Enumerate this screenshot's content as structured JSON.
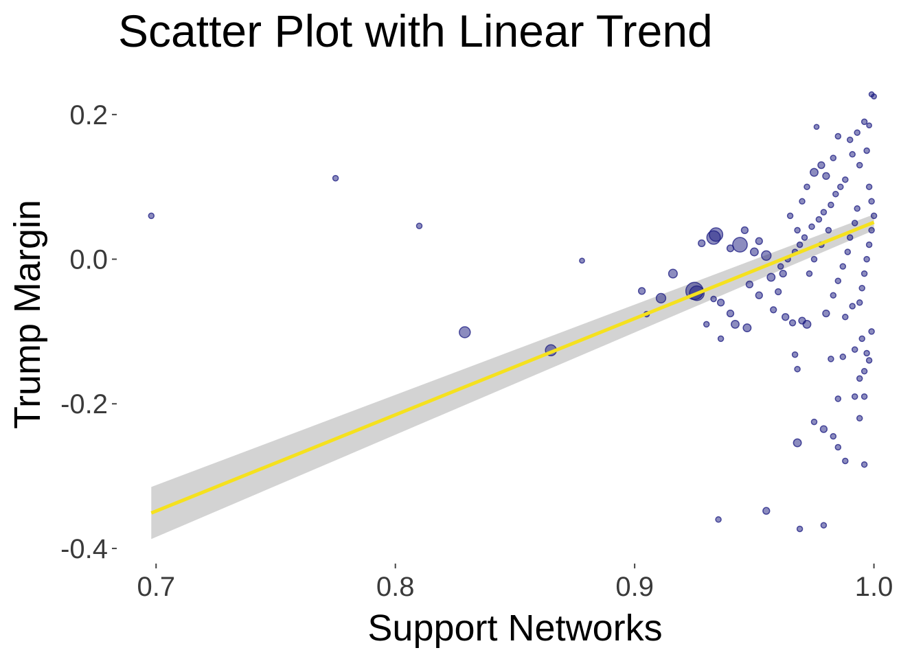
{
  "chart_data": {
    "type": "scatter",
    "title": "Scatter Plot with Linear Trend",
    "xlabel": "Support Networks",
    "ylabel": "Trump Margin",
    "xlim": [
      0.685,
      1.005
    ],
    "ylim": [
      -0.42,
      0.235
    ],
    "x_ticks": [
      {
        "value": 0.7,
        "label": "0.7"
      },
      {
        "value": 0.8,
        "label": "0.8"
      },
      {
        "value": 0.9,
        "label": "0.9"
      },
      {
        "value": 1.0,
        "label": "1.0"
      }
    ],
    "y_ticks": [
      {
        "value": 0.2,
        "label": "0.2"
      },
      {
        "value": 0.0,
        "label": "0.0"
      },
      {
        "value": -0.2,
        "label": "-0.2"
      },
      {
        "value": -0.4,
        "label": "-0.4"
      }
    ],
    "grid": false,
    "colors": {
      "points": "#1a1a80",
      "point_fill_opacity": 0.5,
      "trend_line": "#f5e11e",
      "confidence_band": "#d3d3d3"
    },
    "trend": {
      "x": [
        0.698,
        1.0
      ],
      "y": [
        -0.351,
        0.051
      ],
      "band_lower": [
        -0.387,
        0.04
      ],
      "band_upper": [
        -0.315,
        0.062
      ]
    },
    "points": [
      {
        "x": 0.698,
        "y": 0.06,
        "size": 1
      },
      {
        "x": 0.775,
        "y": 0.112,
        "size": 1
      },
      {
        "x": 0.81,
        "y": 0.046,
        "size": 1
      },
      {
        "x": 0.829,
        "y": -0.101,
        "size": 4
      },
      {
        "x": 0.865,
        "y": -0.126,
        "size": 4
      },
      {
        "x": 0.878,
        "y": -0.002,
        "size": 0.8
      },
      {
        "x": 0.903,
        "y": -0.044,
        "size": 1.5
      },
      {
        "x": 0.911,
        "y": -0.054,
        "size": 3
      },
      {
        "x": 0.916,
        "y": -0.02,
        "size": 2.5
      },
      {
        "x": 0.925,
        "y": -0.044,
        "size": 10
      },
      {
        "x": 0.926,
        "y": -0.047,
        "size": 7
      },
      {
        "x": 0.928,
        "y": 0.022,
        "size": 1.5
      },
      {
        "x": 0.933,
        "y": 0.03,
        "size": 6
      },
      {
        "x": 0.934,
        "y": 0.034,
        "size": 6
      },
      {
        "x": 0.944,
        "y": 0.02,
        "size": 7
      },
      {
        "x": 0.95,
        "y": 0.01,
        "size": 2
      },
      {
        "x": 0.955,
        "y": 0.005,
        "size": 3
      },
      {
        "x": 0.936,
        "y": -0.06,
        "size": 1.5
      },
      {
        "x": 0.94,
        "y": -0.075,
        "size": 1.5
      },
      {
        "x": 0.942,
        "y": -0.09,
        "size": 2
      },
      {
        "x": 0.947,
        "y": -0.095,
        "size": 2
      },
      {
        "x": 0.933,
        "y": -0.055,
        "size": 1
      },
      {
        "x": 0.93,
        "y": -0.09,
        "size": 1
      },
      {
        "x": 0.948,
        "y": -0.035,
        "size": 1.5
      },
      {
        "x": 0.952,
        "y": -0.05,
        "size": 1.5
      },
      {
        "x": 0.958,
        "y": -0.07,
        "size": 1.2
      },
      {
        "x": 0.96,
        "y": -0.045,
        "size": 1.2
      },
      {
        "x": 0.963,
        "y": -0.08,
        "size": 1.5
      },
      {
        "x": 0.966,
        "y": -0.088,
        "size": 1.2
      },
      {
        "x": 0.97,
        "y": -0.085,
        "size": 1.5
      },
      {
        "x": 0.962,
        "y": -0.02,
        "size": 1.5
      },
      {
        "x": 0.965,
        "y": 0.06,
        "size": 1
      },
      {
        "x": 0.968,
        "y": 0.04,
        "size": 1
      },
      {
        "x": 0.97,
        "y": 0.08,
        "size": 1
      },
      {
        "x": 0.972,
        "y": 0.1,
        "size": 1
      },
      {
        "x": 0.975,
        "y": 0.12,
        "size": 2
      },
      {
        "x": 0.978,
        "y": 0.13,
        "size": 1.5
      },
      {
        "x": 0.98,
        "y": 0.115,
        "size": 1.5
      },
      {
        "x": 0.983,
        "y": 0.14,
        "size": 1
      },
      {
        "x": 0.985,
        "y": 0.17,
        "size": 1
      },
      {
        "x": 0.976,
        "y": 0.183,
        "size": 0.8
      },
      {
        "x": 0.99,
        "y": 0.165,
        "size": 1
      },
      {
        "x": 0.993,
        "y": 0.175,
        "size": 1
      },
      {
        "x": 0.996,
        "y": 0.19,
        "size": 1
      },
      {
        "x": 0.998,
        "y": 0.185,
        "size": 0.8
      },
      {
        "x": 0.999,
        "y": 0.228,
        "size": 0.8
      },
      {
        "x": 1.0,
        "y": 0.225,
        "size": 0.8
      },
      {
        "x": 0.997,
        "y": 0.15,
        "size": 1
      },
      {
        "x": 0.994,
        "y": 0.13,
        "size": 1
      },
      {
        "x": 0.991,
        "y": 0.145,
        "size": 1
      },
      {
        "x": 0.988,
        "y": 0.11,
        "size": 1
      },
      {
        "x": 0.986,
        "y": 0.1,
        "size": 1
      },
      {
        "x": 0.984,
        "y": 0.09,
        "size": 1
      },
      {
        "x": 0.982,
        "y": 0.075,
        "size": 1
      },
      {
        "x": 0.979,
        "y": 0.065,
        "size": 1
      },
      {
        "x": 0.977,
        "y": 0.055,
        "size": 1
      },
      {
        "x": 0.974,
        "y": 0.045,
        "size": 1
      },
      {
        "x": 0.971,
        "y": 0.03,
        "size": 1
      },
      {
        "x": 0.969,
        "y": 0.02,
        "size": 1
      },
      {
        "x": 0.967,
        "y": 0.01,
        "size": 1
      },
      {
        "x": 0.964,
        "y": 0.0,
        "size": 1
      },
      {
        "x": 0.961,
        "y": -0.01,
        "size": 1
      },
      {
        "x": 0.998,
        "y": 0.1,
        "size": 1
      },
      {
        "x": 0.999,
        "y": 0.08,
        "size": 1
      },
      {
        "x": 1.0,
        "y": 0.06,
        "size": 1
      },
      {
        "x": 0.999,
        "y": 0.04,
        "size": 1
      },
      {
        "x": 0.998,
        "y": 0.02,
        "size": 1
      },
      {
        "x": 0.997,
        "y": 0.0,
        "size": 1
      },
      {
        "x": 0.996,
        "y": -0.02,
        "size": 1
      },
      {
        "x": 0.995,
        "y": -0.04,
        "size": 1
      },
      {
        "x": 0.994,
        "y": -0.06,
        "size": 1
      },
      {
        "x": 0.993,
        "y": 0.07,
        "size": 1
      },
      {
        "x": 0.992,
        "y": 0.05,
        "size": 1
      },
      {
        "x": 0.99,
        "y": 0.03,
        "size": 1
      },
      {
        "x": 0.989,
        "y": 0.01,
        "size": 1
      },
      {
        "x": 0.987,
        "y": -0.01,
        "size": 1
      },
      {
        "x": 0.985,
        "y": -0.03,
        "size": 1
      },
      {
        "x": 0.983,
        "y": -0.05,
        "size": 1
      },
      {
        "x": 0.981,
        "y": 0.04,
        "size": 1
      },
      {
        "x": 0.978,
        "y": 0.02,
        "size": 1
      },
      {
        "x": 0.975,
        "y": 0.0,
        "size": 1
      },
      {
        "x": 0.973,
        "y": -0.02,
        "size": 1
      },
      {
        "x": 0.995,
        "y": -0.11,
        "size": 1
      },
      {
        "x": 0.997,
        "y": -0.13,
        "size": 1
      },
      {
        "x": 0.998,
        "y": -0.14,
        "size": 1
      },
      {
        "x": 0.992,
        "y": -0.125,
        "size": 1
      },
      {
        "x": 0.987,
        "y": -0.135,
        "size": 1
      },
      {
        "x": 0.982,
        "y": -0.138,
        "size": 1
      },
      {
        "x": 0.967,
        "y": -0.132,
        "size": 1
      },
      {
        "x": 0.968,
        "y": -0.152,
        "size": 1
      },
      {
        "x": 0.996,
        "y": -0.155,
        "size": 1
      },
      {
        "x": 0.994,
        "y": -0.165,
        "size": 1
      },
      {
        "x": 0.996,
        "y": -0.19,
        "size": 1
      },
      {
        "x": 0.985,
        "y": -0.193,
        "size": 1
      },
      {
        "x": 0.992,
        "y": -0.19,
        "size": 1
      },
      {
        "x": 0.994,
        "y": -0.22,
        "size": 1
      },
      {
        "x": 0.975,
        "y": -0.225,
        "size": 1
      },
      {
        "x": 0.979,
        "y": -0.235,
        "size": 1.5
      },
      {
        "x": 0.983,
        "y": -0.245,
        "size": 1
      },
      {
        "x": 0.985,
        "y": -0.26,
        "size": 1
      },
      {
        "x": 0.968,
        "y": -0.254,
        "size": 2
      },
      {
        "x": 0.988,
        "y": -0.279,
        "size": 1
      },
      {
        "x": 0.996,
        "y": -0.284,
        "size": 1
      },
      {
        "x": 0.935,
        "y": -0.36,
        "size": 1
      },
      {
        "x": 0.955,
        "y": -0.348,
        "size": 1.5
      },
      {
        "x": 0.969,
        "y": -0.373,
        "size": 1
      },
      {
        "x": 0.979,
        "y": -0.368,
        "size": 1
      },
      {
        "x": 0.972,
        "y": -0.09,
        "size": 2
      },
      {
        "x": 0.98,
        "y": -0.075,
        "size": 1.5
      },
      {
        "x": 0.988,
        "y": -0.08,
        "size": 1
      },
      {
        "x": 0.991,
        "y": -0.065,
        "size": 1
      },
      {
        "x": 0.999,
        "y": -0.1,
        "size": 1
      },
      {
        "x": 0.936,
        "y": -0.11,
        "size": 1
      },
      {
        "x": 0.957,
        "y": -0.025,
        "size": 2
      },
      {
        "x": 0.952,
        "y": 0.025,
        "size": 1.5
      },
      {
        "x": 0.946,
        "y": 0.04,
        "size": 1.5
      },
      {
        "x": 0.94,
        "y": 0.015,
        "size": 1.5
      },
      {
        "x": 0.905,
        "y": -0.076,
        "size": 1
      }
    ]
  }
}
